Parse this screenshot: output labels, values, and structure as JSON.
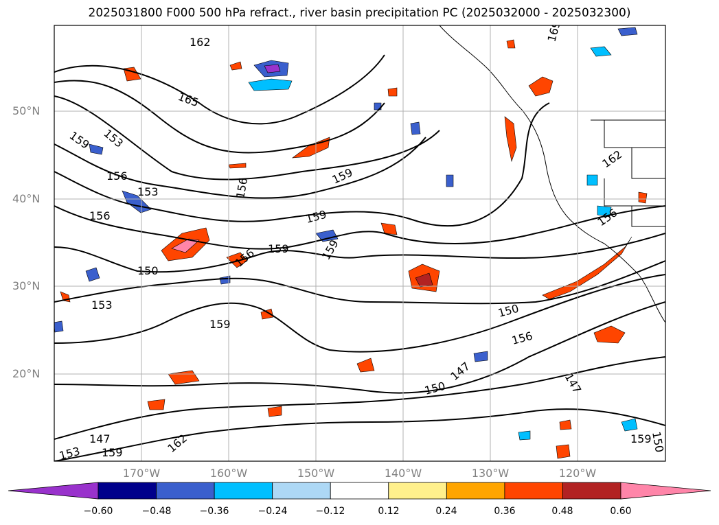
{
  "title": "2025031800 F000 500 hPa refract., river basin precipitation PC (2025032000 - 2025032300)",
  "lat_labels": [
    "50°N",
    "40°N",
    "30°N",
    "20°N"
  ],
  "lon_labels": [
    "170°W",
    "160°W",
    "150°W",
    "140°W",
    "130°W",
    "120°W"
  ],
  "contour_labels": [
    "162",
    "165",
    "159",
    "153",
    "156",
    "153",
    "156",
    "156",
    "159",
    "159",
    "159",
    "159",
    "150",
    "153",
    "156",
    "159",
    "150",
    "156",
    "147",
    "150",
    "147",
    "162",
    "156",
    "159",
    "150",
    "147",
    "153",
    "159",
    "162",
    "156",
    "169"
  ],
  "colorbar": {
    "ticks": [
      "−0.60",
      "−0.48",
      "−0.36",
      "−0.24",
      "−0.12",
      "0.12",
      "0.24",
      "0.36",
      "0.48",
      "0.60"
    ],
    "colors": {
      "under": "#9932cc",
      "bins": [
        "#00008b",
        "#3a5fcd",
        "#00bfff",
        "#add8f5",
        "#ffffff",
        "#fff08c",
        "#ffa500",
        "#ff4500",
        "#b22222"
      ],
      "over": "#ff85a9"
    }
  },
  "contour_color": "#000000",
  "grid_color": "#b0b0b0"
}
